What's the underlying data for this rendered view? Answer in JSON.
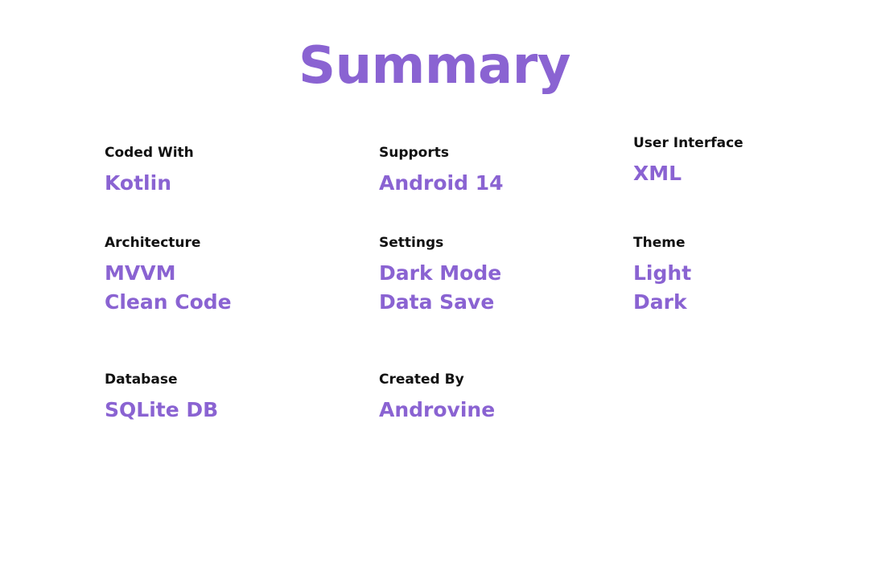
{
  "title": "Summary",
  "colors": {
    "accent": "#8a63d2",
    "label": "#111111",
    "background": "#ffffff"
  },
  "items": {
    "coded_with": {
      "label": "Coded With",
      "values": [
        "Kotlin"
      ]
    },
    "supports": {
      "label": "Supports",
      "values": [
        "Android 14"
      ]
    },
    "user_interface": {
      "label": "User Interface",
      "values": [
        "XML"
      ]
    },
    "architecture": {
      "label": "Architecture",
      "values": [
        "MVVM",
        "Clean Code"
      ]
    },
    "settings": {
      "label": "Settings",
      "values": [
        "Dark Mode",
        "Data Save"
      ]
    },
    "theme": {
      "label": "Theme",
      "values": [
        "Light",
        "Dark"
      ]
    },
    "database": {
      "label": "Database",
      "values": [
        "SQLite DB"
      ]
    },
    "created_by": {
      "label": "Created By",
      "values": [
        "Androvine"
      ]
    }
  }
}
